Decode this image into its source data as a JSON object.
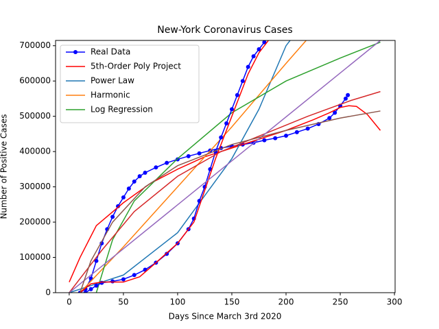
{
  "chart_data": {
    "type": "line",
    "title": "New-York Coronavirus Cases",
    "x_label": "Days Since March 3rd 2020",
    "y_label": "Number of Positive Cases",
    "xlim": [
      -12.6,
      300.6
    ],
    "ylim": [
      0,
      715000
    ],
    "xticks": [
      0,
      50,
      100,
      150,
      200,
      250,
      300
    ],
    "yticks": [
      0,
      100000,
      200000,
      300000,
      400000,
      500000,
      600000,
      700000
    ],
    "legend": "upper-left",
    "series": [
      {
        "name": "Real Data",
        "color": "#0000ff",
        "marker": true,
        "x": [
          10,
          15,
          20,
          25,
          30,
          35,
          40,
          45,
          50,
          55,
          60,
          65,
          70,
          80,
          90,
          100,
          110,
          120,
          130,
          140,
          150,
          160,
          170,
          180,
          190,
          200,
          210,
          220,
          230,
          240,
          245,
          250,
          255,
          257
        ],
        "values": [
          0,
          10000,
          40000,
          90000,
          140000,
          180000,
          215000,
          245000,
          270000,
          295000,
          315000,
          330000,
          340000,
          355000,
          368000,
          378000,
          387000,
          395000,
          403000,
          410000,
          415000,
          420000,
          425000,
          432000,
          438000,
          445000,
          455000,
          465000,
          478000,
          495000,
          510000,
          530000,
          550000,
          560000
        ]
      },
      {
        "name": "5th-Order Poly Project",
        "color": "#ff0000",
        "marker": false,
        "x": [
          0,
          10,
          25,
          50,
          75,
          100,
          125,
          150,
          175,
          200,
          225,
          240,
          250,
          258,
          265,
          275,
          287
        ],
        "values": [
          30000,
          100000,
          190000,
          255000,
          310000,
          350000,
          385000,
          410000,
          435000,
          460000,
          490000,
          510000,
          525000,
          530000,
          528000,
          505000,
          460000
        ]
      },
      {
        "name": "Power Law",
        "color": "#1f77b4",
        "marker": false,
        "x": [
          0,
          50,
          100,
          150,
          175,
          200,
          205
        ],
        "values": [
          0,
          50000,
          170000,
          380000,
          520000,
          700000,
          720000
        ]
      },
      {
        "name": "Harmonic",
        "color": "#ff7f0e",
        "marker": false,
        "x": [
          10,
          50,
          100,
          150,
          200,
          220
        ],
        "values": [
          0,
          130000,
          300000,
          470000,
          650000,
          720000
        ]
      },
      {
        "name": "Log Regression",
        "color": "#2ca02c",
        "marker": false,
        "x": [
          25,
          40,
          60,
          100,
          150,
          200,
          250,
          287
        ],
        "values": [
          0,
          150000,
          260000,
          380000,
          510000,
          600000,
          665000,
          710000
        ]
      },
      {
        "color": "#0000ff",
        "marker": true,
        "x": [
          15,
          20,
          25,
          30,
          40,
          50,
          60,
          70,
          80,
          90,
          100,
          110,
          115,
          120,
          125,
          130,
          135,
          140,
          145,
          150,
          155,
          160,
          165,
          170,
          175,
          180
        ],
        "values": [
          0,
          10000,
          20000,
          28000,
          32000,
          38000,
          50000,
          65000,
          85000,
          110000,
          140000,
          180000,
          210000,
          260000,
          300000,
          350000,
          400000,
          440000,
          480000,
          520000,
          560000,
          600000,
          640000,
          670000,
          690000,
          710000
        ]
      },
      {
        "color": "#ff0000",
        "marker": false,
        "x": [
          10,
          20,
          30,
          50,
          65,
          80,
          100,
          115,
          125,
          135,
          145,
          155,
          165,
          175,
          185
        ],
        "values": [
          0,
          25000,
          30000,
          30000,
          45000,
          85000,
          140000,
          200000,
          290000,
          380000,
          460000,
          540000,
          620000,
          680000,
          720000
        ]
      },
      {
        "color": "#d62728",
        "marker": false,
        "x": [
          0,
          30,
          60,
          100,
          140,
          180,
          220,
          260,
          287
        ],
        "values": [
          0,
          120000,
          230000,
          330000,
          400000,
          450000,
          500000,
          545000,
          570000
        ]
      },
      {
        "color": "#9467bd",
        "marker": false,
        "x": [
          0,
          287
        ],
        "values": [
          0,
          715000
        ]
      },
      {
        "color": "#8c564b",
        "marker": false,
        "x": [
          10,
          20,
          40,
          70,
          100,
          150,
          200,
          250,
          287
        ],
        "values": [
          0,
          90000,
          200000,
          300000,
          360000,
          420000,
          460000,
          495000,
          515000
        ]
      }
    ]
  }
}
